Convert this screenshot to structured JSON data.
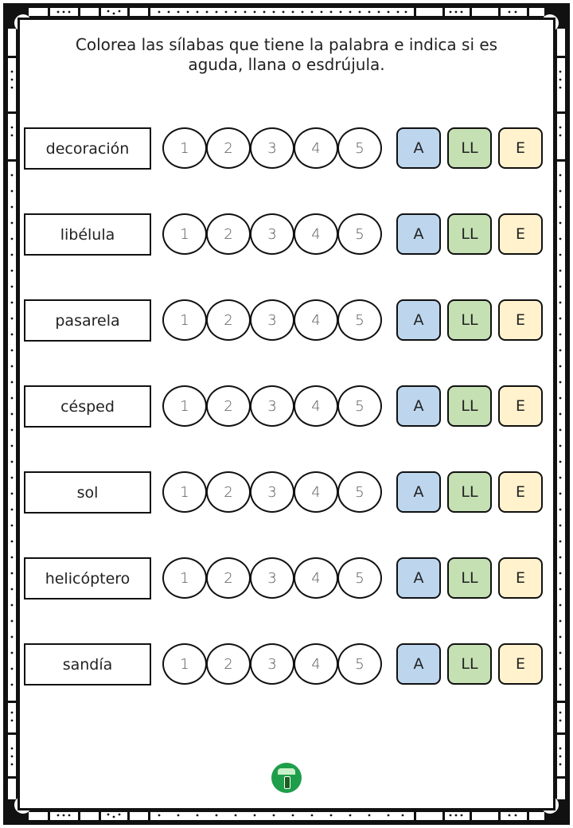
{
  "instructions": "Colorea las sílabas que tiene la palabra e indica si es aguda, llana o esdrújula.",
  "syllable_numbers": [
    "1",
    "2",
    "3",
    "4",
    "5"
  ],
  "options": {
    "aguda": {
      "label": "A",
      "color": "#bdd6ee"
    },
    "llana": {
      "label": "LL",
      "color": "#c5e0b3"
    },
    "esdrujula": {
      "label": "E",
      "color": "#fff2cc"
    }
  },
  "words": [
    "decoración",
    "libélula",
    "pasarela",
    "césped",
    "sol",
    "helicóptero",
    "sandía"
  ],
  "logo_icon": "school-logo-icon"
}
